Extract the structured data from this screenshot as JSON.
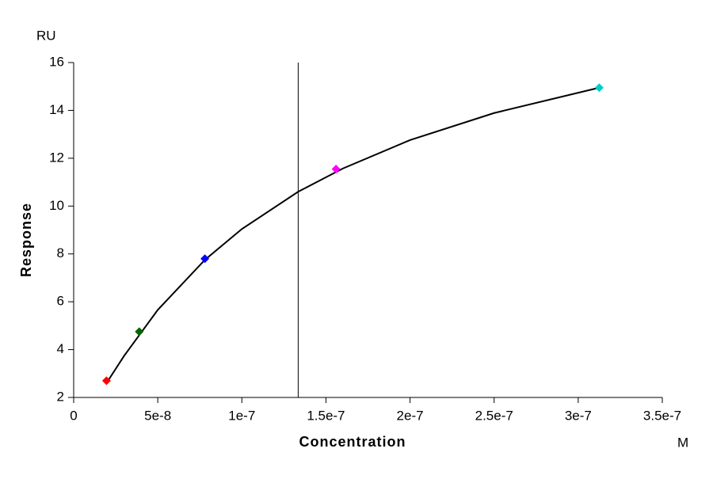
{
  "chart_data": {
    "type": "scatter",
    "y_unit": "RU",
    "x_unit": "M",
    "ylabel": "Response",
    "xlabel": "Concentration",
    "xlim": [
      0,
      3.5e-07
    ],
    "ylim": [
      2,
      16
    ],
    "xticks": [
      {
        "value": 0,
        "label": "0"
      },
      {
        "value": 5e-08,
        "label": "5e-8"
      },
      {
        "value": 1e-07,
        "label": "1e-7"
      },
      {
        "value": 1.5e-07,
        "label": "1.5e-7"
      },
      {
        "value": 2e-07,
        "label": "2e-7"
      },
      {
        "value": 2.5e-07,
        "label": "2.5e-7"
      },
      {
        "value": 3e-07,
        "label": "3e-7"
      },
      {
        "value": 3.5e-07,
        "label": "3.5e-7"
      }
    ],
    "yticks": [
      2,
      4,
      6,
      8,
      10,
      12,
      14,
      16
    ],
    "points": {
      "x": [
        1.95e-08,
        3.9e-08,
        7.8e-08,
        1.56e-07,
        3.125e-07
      ],
      "values": [
        2.7,
        4.75,
        7.8,
        11.55,
        14.95
      ],
      "colors": [
        "#ff0000",
        "#006400",
        "#0000ff",
        "#ff00ff",
        "#00cccc"
      ]
    },
    "fit": {
      "color": "#000000",
      "x": [
        1.95e-08,
        3e-08,
        5e-08,
        7.8e-08,
        1e-07,
        1.335e-07,
        1.6e-07,
        2e-07,
        2.5e-07,
        3.125e-07
      ],
      "values": [
        2.6,
        3.74,
        5.66,
        7.75,
        9.04,
        10.6,
        11.57,
        12.76,
        13.89,
        14.95
      ]
    },
    "vline_x": 1.335e-07
  }
}
